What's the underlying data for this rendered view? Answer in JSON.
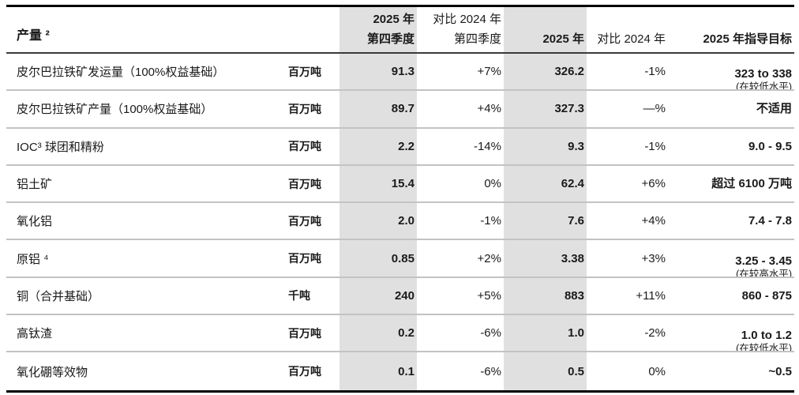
{
  "table": {
    "title": "产量 ²",
    "header": {
      "q4_line1": "2025 年",
      "q4_line2": "第四季度",
      "vs_q4_line1": "对比 2024 年",
      "vs_q4_line2": "第四季度",
      "year_label": "2025 年",
      "vs_year_label": "对比 2024 年",
      "guidance_label": "2025 年指导目标"
    },
    "rows": [
      {
        "name": "皮尔巴拉铁矿发运量（100%权益基础）",
        "unit": "百万吨",
        "q4": "91.3",
        "vs_q4": "+7%",
        "year": "326.2",
        "vs_year": "-1%",
        "guidance": "323 to 338",
        "guidance_note": "(在较低水平)"
      },
      {
        "name": "皮尔巴拉铁矿产量（100%权益基础）",
        "unit": "百万吨",
        "q4": "89.7",
        "vs_q4": "+4%",
        "year": "327.3",
        "vs_year": "—%",
        "guidance": "不适用"
      },
      {
        "name": "IOC³ 球团和精粉",
        "unit": "百万吨",
        "q4": "2.2",
        "vs_q4": "-14%",
        "year": "9.3",
        "vs_year": "-1%",
        "guidance": "9.0 - 9.5"
      },
      {
        "name": "铝土矿",
        "unit": "百万吨",
        "q4": "15.4",
        "vs_q4": "0%",
        "year": "62.4",
        "vs_year": "+6%",
        "guidance": "超过 6100 万吨"
      },
      {
        "name": "氧化铝",
        "unit": "百万吨",
        "q4": "2.0",
        "vs_q4": "-1%",
        "year": "7.6",
        "vs_year": "+4%",
        "guidance": "7.4 - 7.8"
      },
      {
        "name": "原铝 ⁴",
        "unit": "百万吨",
        "q4": "0.85",
        "vs_q4": "+2%",
        "year": "3.38",
        "vs_year": "+3%",
        "guidance": "3.25 - 3.45",
        "guidance_note": "(在较高水平)"
      },
      {
        "name": "铜（合并基础）",
        "unit": "千吨",
        "q4": "240",
        "vs_q4": "+5%",
        "year": "883",
        "vs_year": "+11%",
        "guidance": "860 - 875"
      },
      {
        "name": "高钛渣",
        "unit": "百万吨",
        "q4": "0.2",
        "vs_q4": "-6%",
        "year": "1.0",
        "vs_year": "-2%",
        "guidance": "1.0 to 1.2",
        "guidance_note": "(在较低水平)"
      },
      {
        "name": "氧化硼等效物",
        "unit": "百万吨",
        "q4": "0.1",
        "vs_q4": "-6%",
        "year": "0.5",
        "vs_year": "0%",
        "guidance": "~0.5"
      }
    ],
    "colors": {
      "highlight_column_bg": "#e0e0e0",
      "border_strong": "#000000",
      "border_header": "#3a3a3a",
      "border_row": "#c3c3c3",
      "text": "#1a1a1a"
    }
  }
}
